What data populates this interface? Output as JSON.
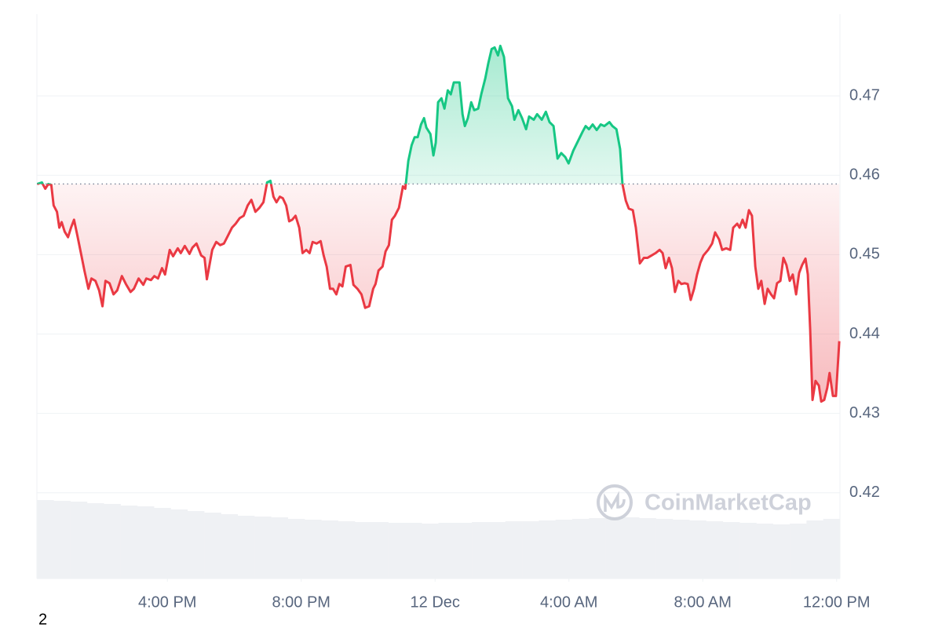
{
  "chart_data": {
    "type": "line",
    "x": [
      -11.89,
      -11.75,
      -11.65,
      -11.56,
      -11.47,
      -11.4,
      -11.3,
      -11.23,
      -11.16,
      -11.07,
      -10.97,
      -10.88,
      -10.79,
      -10.69,
      -10.57,
      -10.48,
      -10.36,
      -10.27,
      -10.15,
      -10.04,
      -9.94,
      -9.85,
      -9.73,
      -9.61,
      -9.5,
      -9.36,
      -9.24,
      -9.1,
      -9.0,
      -8.86,
      -8.72,
      -8.63,
      -8.49,
      -8.39,
      -8.28,
      -8.16,
      -8.07,
      -7.93,
      -7.83,
      -7.69,
      -7.6,
      -7.48,
      -7.34,
      -7.25,
      -7.13,
      -6.99,
      -6.89,
      -6.82,
      -6.75,
      -6.66,
      -6.54,
      -6.42,
      -6.31,
      -6.19,
      -6.07,
      -5.96,
      -5.84,
      -5.72,
      -5.6,
      -5.49,
      -5.37,
      -5.25,
      -5.13,
      -5.02,
      -4.92,
      -4.83,
      -4.74,
      -4.64,
      -4.55,
      -4.45,
      -4.36,
      -4.27,
      -4.17,
      -4.06,
      -3.96,
      -3.85,
      -3.75,
      -3.66,
      -3.54,
      -3.42,
      -3.33,
      -3.24,
      -3.14,
      -3.05,
      -2.95,
      -2.86,
      -2.77,
      -2.67,
      -2.53,
      -2.44,
      -2.32,
      -2.2,
      -2.09,
      -1.97,
      -1.85,
      -1.78,
      -1.69,
      -1.57,
      -1.48,
      -1.38,
      -1.29,
      -1.2,
      -1.08,
      -0.96,
      -0.89,
      -0.8,
      -0.7,
      -0.61,
      -0.52,
      -0.42,
      -0.33,
      -0.26,
      -0.14,
      -0.05,
      0.02,
      0.09,
      0.19,
      0.28,
      0.38,
      0.47,
      0.56,
      0.73,
      0.82,
      0.89,
      0.98,
      1.08,
      1.17,
      1.29,
      1.38,
      1.5,
      1.59,
      1.69,
      1.78,
      1.88,
      1.95,
      2.06,
      2.18,
      2.3,
      2.37,
      2.49,
      2.6,
      2.72,
      2.81,
      2.95,
      3.05,
      3.19,
      3.31,
      3.42,
      3.54,
      3.66,
      3.77,
      3.89,
      3.99,
      4.13,
      4.27,
      4.41,
      4.5,
      4.6,
      4.71,
      4.83,
      4.95,
      5.06,
      5.21,
      5.3,
      5.42,
      5.53,
      5.6,
      5.7,
      5.79,
      5.91,
      6.0,
      6.12,
      6.24,
      6.35,
      6.47,
      6.59,
      6.71,
      6.8,
      6.89,
      6.99,
      7.08,
      7.17,
      7.27,
      7.36,
      7.46,
      7.55,
      7.64,
      7.74,
      7.83,
      7.93,
      8.02,
      8.16,
      8.28,
      8.37,
      8.49,
      8.58,
      8.7,
      8.82,
      8.91,
      9.03,
      9.1,
      9.19,
      9.28,
      9.38,
      9.47,
      9.57,
      9.66,
      9.75,
      9.85,
      9.94,
      10.04,
      10.13,
      10.22,
      10.32,
      10.41,
      10.5,
      10.6,
      10.69,
      10.79,
      10.88,
      10.97,
      11.07,
      11.14,
      11.21,
      11.28,
      11.37,
      11.47,
      11.54,
      11.63,
      11.72,
      11.79,
      11.89,
      11.98,
      12.08
    ],
    "values": [
      0.4589,
      0.4591,
      0.4583,
      0.4589,
      0.4588,
      0.4562,
      0.4554,
      0.4534,
      0.4541,
      0.4529,
      0.4522,
      0.4534,
      0.4544,
      0.4524,
      0.4499,
      0.448,
      0.4457,
      0.447,
      0.4467,
      0.4455,
      0.4435,
      0.4467,
      0.4464,
      0.445,
      0.4455,
      0.4473,
      0.4463,
      0.4453,
      0.4457,
      0.447,
      0.4462,
      0.447,
      0.4468,
      0.4473,
      0.447,
      0.4483,
      0.4475,
      0.4506,
      0.4498,
      0.4508,
      0.4502,
      0.4511,
      0.4501,
      0.4509,
      0.4514,
      0.4499,
      0.4496,
      0.4469,
      0.4485,
      0.4506,
      0.4516,
      0.4512,
      0.4514,
      0.4524,
      0.4534,
      0.4539,
      0.4546,
      0.4549,
      0.4562,
      0.4569,
      0.4554,
      0.4559,
      0.4566,
      0.4591,
      0.4593,
      0.4573,
      0.4566,
      0.4573,
      0.4571,
      0.4562,
      0.4542,
      0.4544,
      0.4549,
      0.4534,
      0.4502,
      0.4506,
      0.4502,
      0.4516,
      0.4514,
      0.4517,
      0.4499,
      0.4485,
      0.4457,
      0.4457,
      0.445,
      0.4463,
      0.446,
      0.4485,
      0.4487,
      0.4462,
      0.4457,
      0.445,
      0.4433,
      0.4435,
      0.4457,
      0.4463,
      0.448,
      0.4485,
      0.4504,
      0.4512,
      0.4544,
      0.4549,
      0.4559,
      0.4586,
      0.4583,
      0.4618,
      0.4638,
      0.4648,
      0.4648,
      0.4664,
      0.4672,
      0.466,
      0.4652,
      0.4625,
      0.4641,
      0.4692,
      0.4697,
      0.4684,
      0.4707,
      0.4702,
      0.4717,
      0.4717,
      0.4677,
      0.4662,
      0.4672,
      0.4692,
      0.4682,
      0.4684,
      0.4702,
      0.4722,
      0.4741,
      0.4759,
      0.4761,
      0.4751,
      0.4763,
      0.4749,
      0.4697,
      0.4687,
      0.467,
      0.4682,
      0.4672,
      0.4658,
      0.4674,
      0.467,
      0.4677,
      0.467,
      0.468,
      0.4667,
      0.4662,
      0.4621,
      0.4628,
      0.4623,
      0.4615,
      0.4631,
      0.4643,
      0.4655,
      0.4662,
      0.4658,
      0.4664,
      0.4657,
      0.4664,
      0.4662,
      0.4667,
      0.4662,
      0.4658,
      0.4633,
      0.4589,
      0.4568,
      0.4558,
      0.4556,
      0.4534,
      0.4489,
      0.4496,
      0.4496,
      0.4499,
      0.4502,
      0.4506,
      0.4502,
      0.4483,
      0.4496,
      0.4483,
      0.4453,
      0.4467,
      0.4463,
      0.4464,
      0.4463,
      0.4443,
      0.4457,
      0.4475,
      0.449,
      0.4499,
      0.4506,
      0.4514,
      0.4528,
      0.4519,
      0.4506,
      0.4508,
      0.4506,
      0.4534,
      0.4539,
      0.4534,
      0.4544,
      0.4534,
      0.4556,
      0.4549,
      0.4485,
      0.4457,
      0.4467,
      0.4438,
      0.4457,
      0.445,
      0.4445,
      0.4464,
      0.4467,
      0.4496,
      0.4487,
      0.4467,
      0.4475,
      0.445,
      0.4477,
      0.4487,
      0.4495,
      0.4475,
      0.4406,
      0.4317,
      0.4341,
      0.4335,
      0.4315,
      0.4317,
      0.4332,
      0.4351,
      0.4322,
      0.4322,
      0.4391
    ],
    "baseline": 0.4589,
    "up_color": "#16c784",
    "down_color": "#ea3943",
    "xlim": [
      -11.9,
      12.1
    ],
    "xticks": [
      {
        "value": -8,
        "label": "4:00 PM"
      },
      {
        "value": -4,
        "label": "8:00 PM"
      },
      {
        "value": 0,
        "label": "12 Dec"
      },
      {
        "value": 4,
        "label": "4:00 AM"
      },
      {
        "value": 8,
        "label": "8:00 AM"
      },
      {
        "value": 12,
        "label": "12:00 PM"
      }
    ],
    "ylim": [
      0.4092,
      0.4803
    ],
    "yticks": [
      0.42,
      0.43,
      0.44,
      0.45,
      0.46,
      0.47
    ],
    "grid": true,
    "volume": {
      "color": "#eff1f4",
      "ylim": [
        0,
        719
      ],
      "values": [
        100,
        99,
        98,
        96,
        95,
        93,
        92,
        90,
        88,
        86,
        84,
        82,
        80,
        79,
        78,
        76,
        75,
        74,
        73,
        72,
        72,
        71,
        71,
        70,
        71,
        71,
        72,
        72,
        73,
        73,
        74,
        75,
        76,
        77,
        78,
        78,
        77,
        76,
        75,
        74,
        73,
        72,
        71,
        70,
        69,
        70,
        74,
        76
      ]
    },
    "watermark": "CoinMarketCap",
    "corner_label": "2"
  }
}
